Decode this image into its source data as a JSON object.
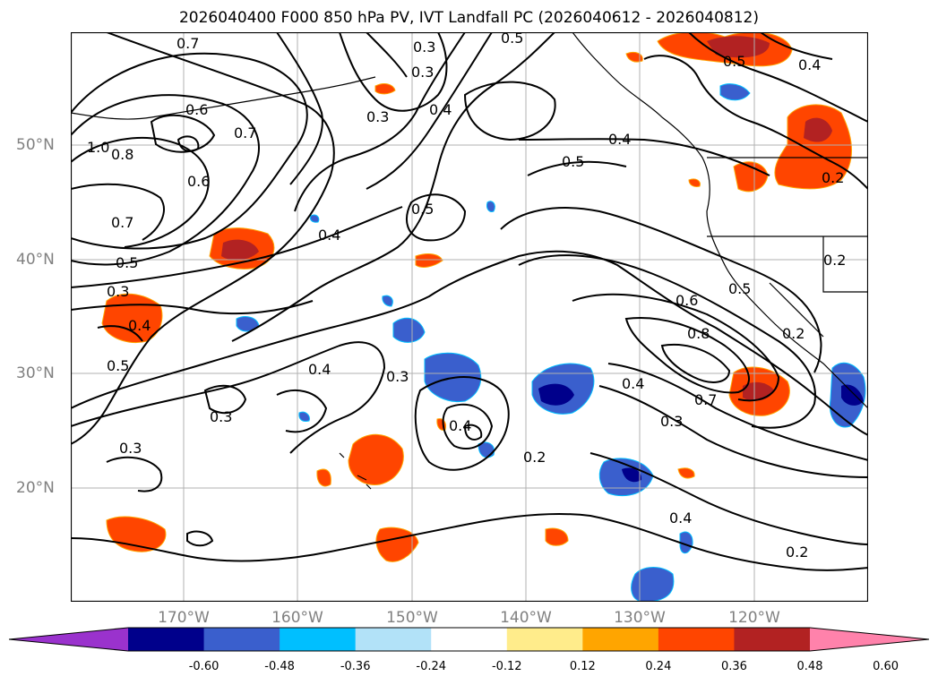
{
  "title": "2026040400 F000 850 hPa PV, IVT Landfall PC (2026040612 - 2026040812)",
  "lat_labels": [
    "50°N",
    "40°N",
    "30°N",
    "20°N"
  ],
  "lon_labels": [
    "170°W",
    "160°W",
    "150°W",
    "140°W",
    "130°W",
    "120°W"
  ],
  "contour_labels": [
    "0.7",
    "0.6",
    "0.3",
    "0.5",
    "0.3",
    "0.4",
    "0.3",
    "0.7",
    "0.6",
    "0.5",
    "0.4",
    "0.5",
    "0.4",
    "0.5",
    "0.7",
    "0.3",
    "0.4",
    "0.5",
    "0.3",
    "0.4",
    "0.3",
    "0.4",
    "0.3",
    "0.2",
    "0.6",
    "0.8",
    "0.7",
    "0.4",
    "0.3",
    "0.5",
    "0.2",
    "0.2",
    "0.2",
    "0.4",
    "0.2",
    "0.5",
    "0.4",
    "0.8",
    "1.0"
  ],
  "colorbar": {
    "ticks": [
      "-0.60",
      "-0.48",
      "-0.36",
      "-0.24",
      "-0.12",
      "0.12",
      "0.24",
      "0.36",
      "0.48",
      "0.60"
    ],
    "colors": [
      "#9a32cd",
      "#00008b",
      "#3a5fcd",
      "#00bfff",
      "#b2e2f8",
      "#ffffff",
      "#ffec8b",
      "#ffa500",
      "#ff4500",
      "#b22222",
      "#ff82ab"
    ]
  },
  "colors": {
    "ocean": "#ffffff",
    "contour": "#000000",
    "grid": "#b0b0b0",
    "coast": "#000000"
  }
}
